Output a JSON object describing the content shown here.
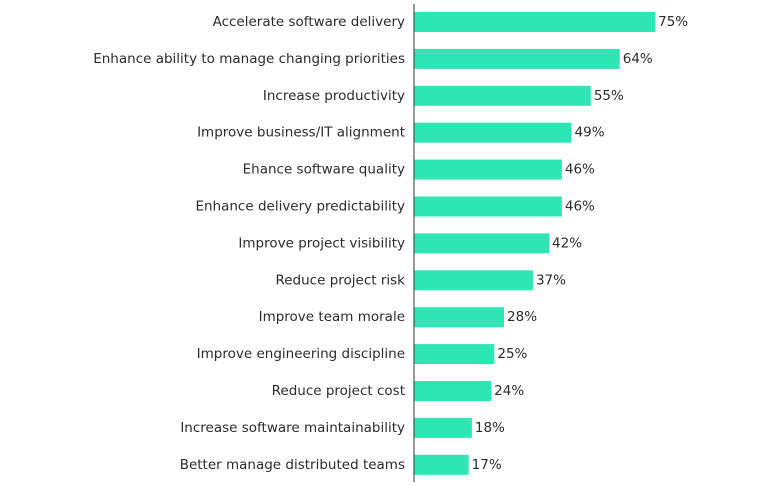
{
  "chart_data": {
    "type": "bar",
    "orientation": "horizontal",
    "color": "#2de6b4",
    "categories": [
      "Accelerate software delivery",
      "Enhance ability to manage changing priorities",
      "Increase productivity",
      "Improve business/IT alignment",
      "Ehance software quality",
      "Enhance delivery predictability",
      "Improve project visibility",
      "Reduce project risk",
      "Improve team morale",
      "Improve engineering discipline",
      "Reduce project cost",
      "Increase software maintainability",
      "Better manage distributed teams"
    ],
    "values": [
      75,
      64,
      55,
      49,
      46,
      46,
      42,
      37,
      28,
      25,
      24,
      18,
      17
    ],
    "value_labels": [
      "75%",
      "64%",
      "55%",
      "49%",
      "46%",
      "46%",
      "42%",
      "37%",
      "28%",
      "25%",
      "24%",
      "18%",
      "17%"
    ]
  }
}
